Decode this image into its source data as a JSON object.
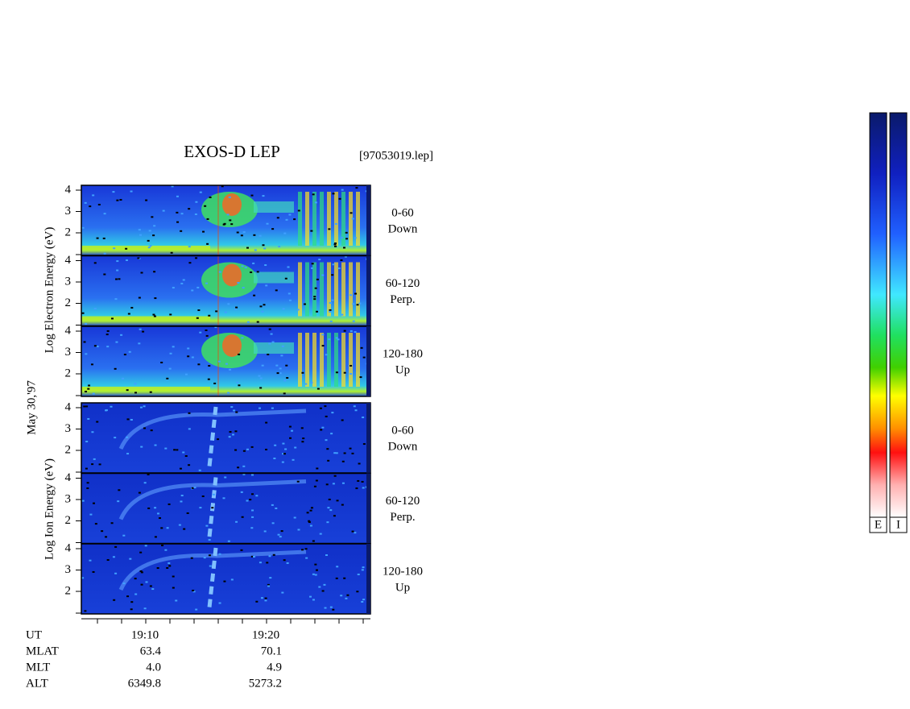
{
  "header": {
    "title": "EXOS-D LEP",
    "file": "[97053019.lep]"
  },
  "electron": {
    "axis_label": "Log Electron Energy (eV)",
    "panels": [
      {
        "yticks": [
          4,
          3,
          2
        ],
        "angle": "0-60",
        "direction": "Down"
      },
      {
        "yticks": [
          4,
          3,
          2
        ],
        "angle": "60-120",
        "direction": "Perp."
      },
      {
        "yticks": [
          4,
          3,
          2
        ],
        "angle": "120-180",
        "direction": "Up"
      }
    ]
  },
  "ion": {
    "axis_label": "Log Ion Energy (eV)",
    "panels": [
      {
        "yticks": [
          4,
          3,
          2
        ],
        "angle": "0-60",
        "direction": "Down"
      },
      {
        "yticks": [
          4,
          3,
          2
        ],
        "angle": "60-120",
        "direction": "Perp."
      },
      {
        "yticks": [
          4,
          3,
          2
        ],
        "angle": "120-180",
        "direction": "Up"
      }
    ]
  },
  "date": "May 30,'97",
  "ephemeris": {
    "rows": [
      [
        "UT",
        "19:10",
        "19:20"
      ],
      [
        "MLAT",
        "63.4",
        "70.1"
      ],
      [
        "MLT",
        "4.0",
        "4.9"
      ],
      [
        "ALT",
        "6349.8",
        "5273.2"
      ]
    ]
  },
  "colorbars": [
    "E",
    "I"
  ]
}
